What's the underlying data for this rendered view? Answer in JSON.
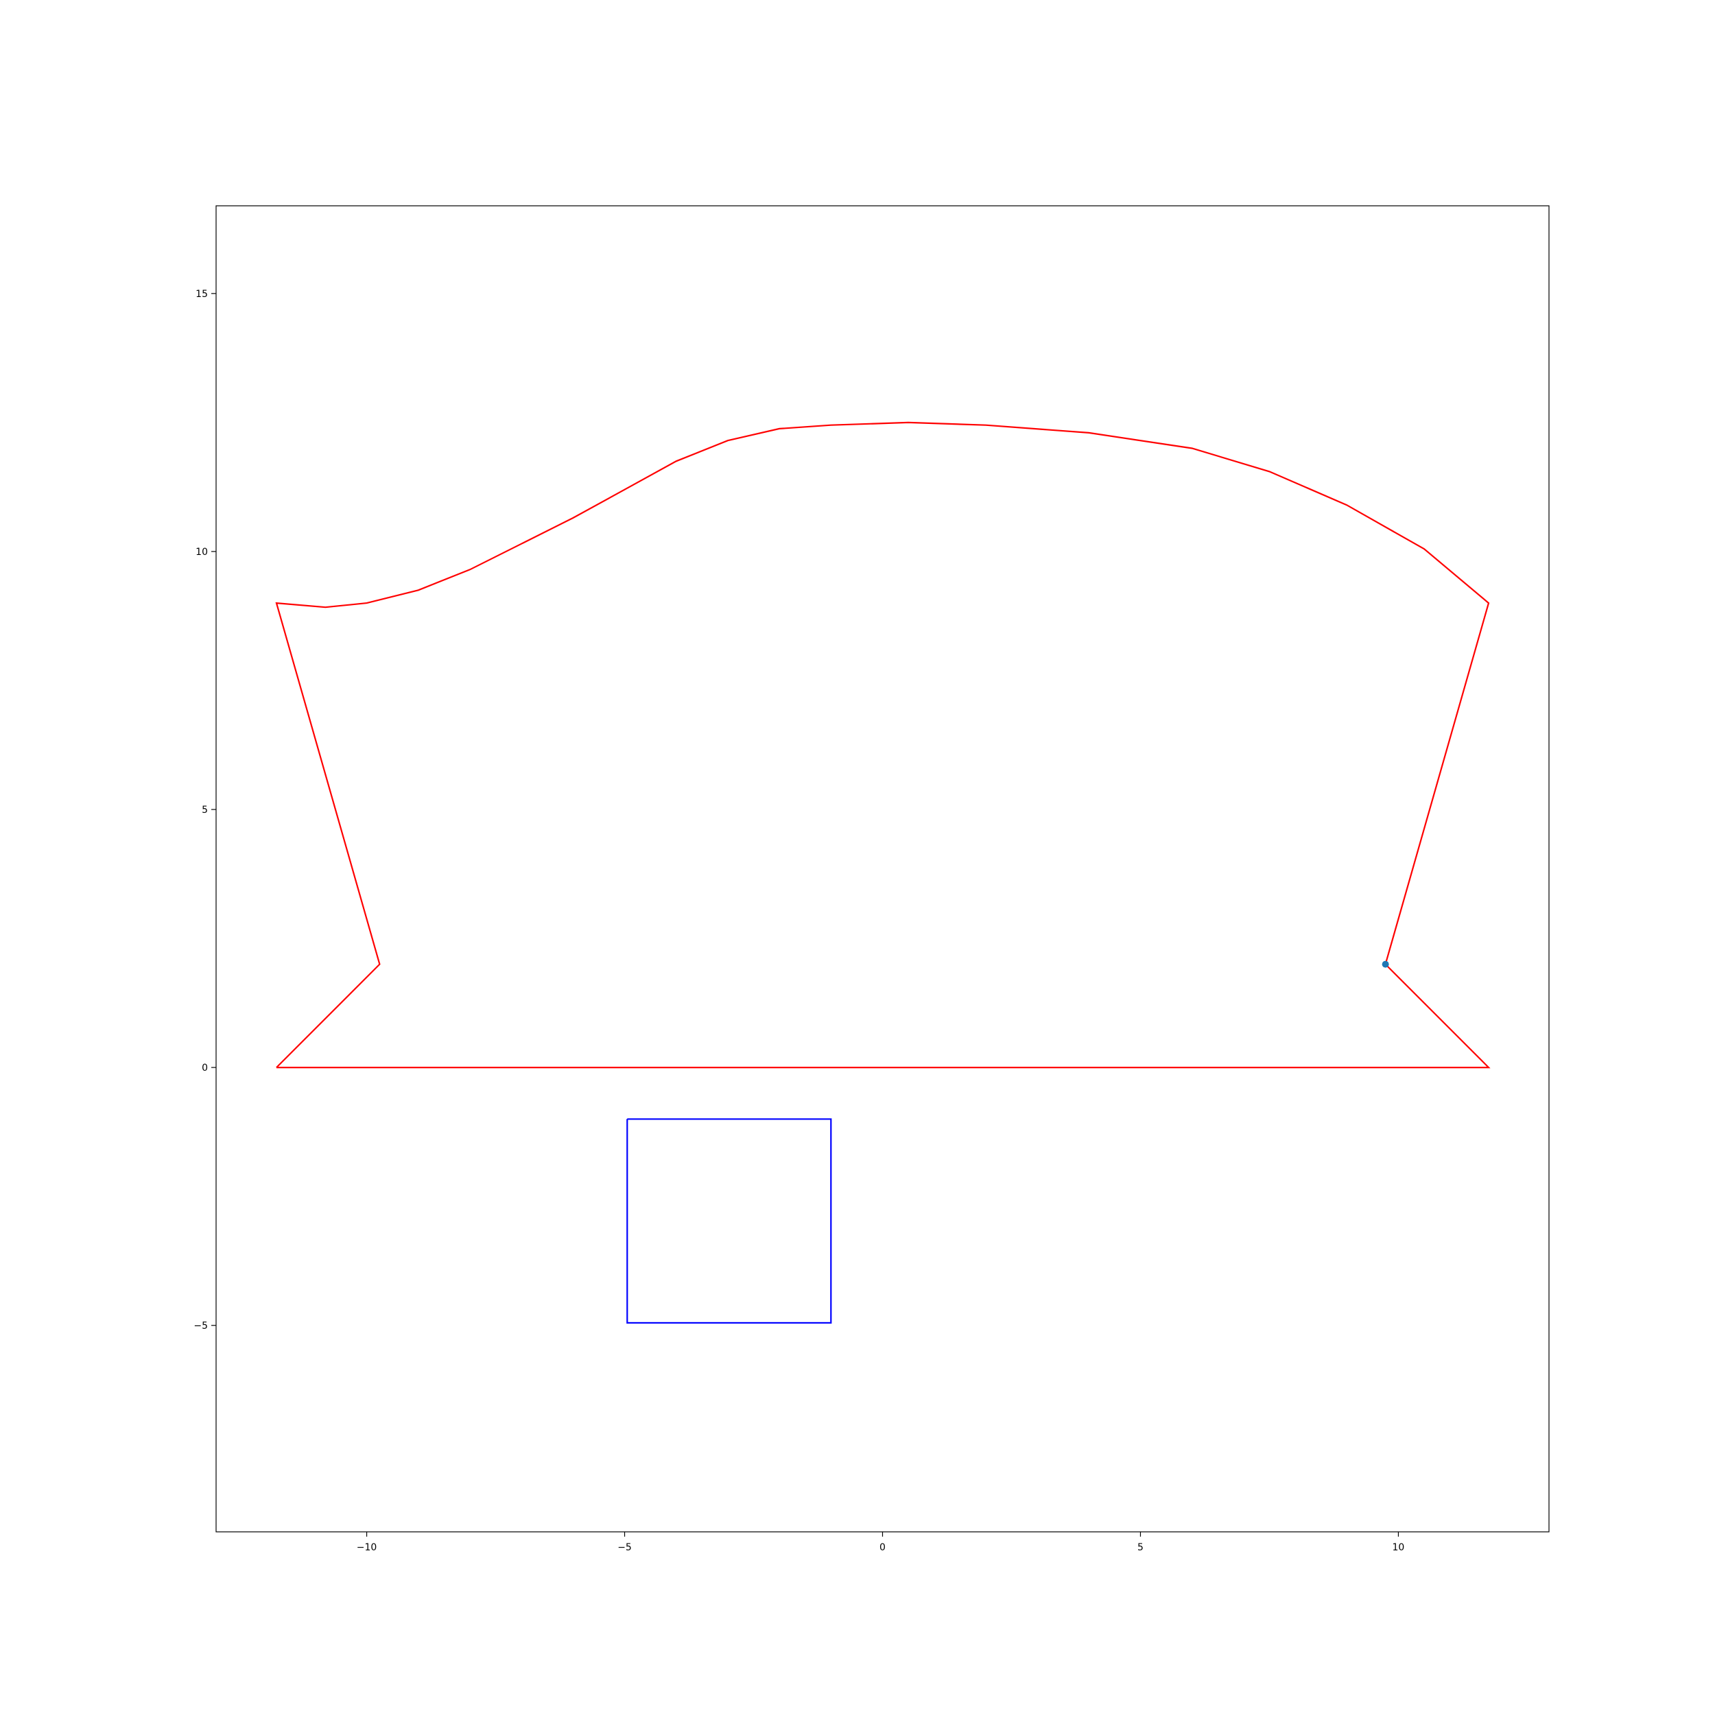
{
  "chart_data": {
    "type": "line",
    "title": "",
    "xlabel": "",
    "ylabel": "",
    "xlim": [
      -12.92,
      12.92
    ],
    "ylim": [
      -9.0,
      16.7
    ],
    "grid": false,
    "x_ticks": [
      {
        "value": -10,
        "label": "−10"
      },
      {
        "value": -5,
        "label": "−5"
      },
      {
        "value": 0,
        "label": "0"
      },
      {
        "value": 5,
        "label": "5"
      },
      {
        "value": 10,
        "label": "10"
      }
    ],
    "y_ticks": [
      {
        "value": -5,
        "label": "−5"
      },
      {
        "value": 0,
        "label": "0"
      },
      {
        "value": 5,
        "label": "5"
      },
      {
        "value": 10,
        "label": "10"
      },
      {
        "value": 15,
        "label": "15"
      }
    ],
    "series": [
      {
        "color": "#ff0000",
        "closed": true,
        "points": [
          [
            -11.75,
            0
          ],
          [
            11.75,
            0
          ],
          [
            9.75,
            2
          ],
          [
            11.75,
            9
          ],
          [
            10.5,
            10.05
          ],
          [
            9,
            10.9
          ],
          [
            7.5,
            11.55
          ],
          [
            6,
            12
          ],
          [
            4,
            12.3
          ],
          [
            2,
            12.45
          ],
          [
            0.5,
            12.5
          ],
          [
            -1,
            12.45
          ],
          [
            -2,
            12.38
          ],
          [
            -3,
            12.15
          ],
          [
            -4,
            11.75
          ],
          [
            -5,
            11.2
          ],
          [
            -6,
            10.65
          ],
          [
            -7,
            10.15
          ],
          [
            -8,
            9.65
          ],
          [
            -9,
            9.25
          ],
          [
            -10,
            9.0
          ],
          [
            -10.8,
            8.92
          ],
          [
            -11.75,
            9
          ],
          [
            -9.75,
            2
          ],
          [
            -11.75,
            0
          ]
        ]
      },
      {
        "color": "#0000ff",
        "closed": true,
        "points": [
          [
            -4.95,
            -1
          ],
          [
            -1.0,
            -1
          ],
          [
            -1.0,
            -4.95
          ],
          [
            -4.95,
            -4.95
          ],
          [
            -4.95,
            -1
          ]
        ]
      }
    ],
    "markers": [
      {
        "x": 9.75,
        "y": 2,
        "color": "#1f77b4"
      }
    ]
  }
}
